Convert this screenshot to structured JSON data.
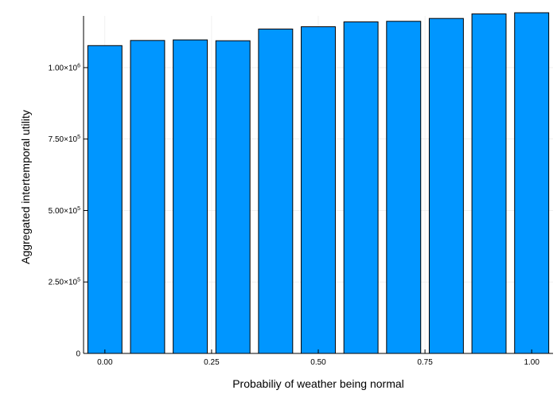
{
  "chart_data": {
    "type": "bar",
    "x": [
      0.0,
      0.1,
      0.2,
      0.3,
      0.4,
      0.5,
      0.6,
      0.7,
      0.8,
      0.9,
      1.0
    ],
    "values": [
      1077000,
      1095000,
      1097000,
      1094000,
      1135000,
      1143000,
      1160000,
      1162000,
      1172000,
      1188000,
      1192000
    ],
    "xlabel": "Probabiliy of weather being normal",
    "ylabel": "Aggregated intertemporal utility",
    "xlim": [
      -0.05,
      1.05
    ],
    "ylim": [
      0,
      1192000
    ],
    "x_ticks": [
      {
        "value": 0.0,
        "label": "0.00"
      },
      {
        "value": 0.25,
        "label": "0.25"
      },
      {
        "value": 0.5,
        "label": "0.50"
      },
      {
        "value": 0.75,
        "label": "0.75"
      },
      {
        "value": 1.0,
        "label": "1.00"
      }
    ],
    "y_ticks": [
      {
        "value": 0,
        "label": "0",
        "mantissa": "",
        "exponent": ""
      },
      {
        "value": 250000,
        "label": "2.50×10⁵",
        "mantissa": "2.50×10",
        "exponent": "5"
      },
      {
        "value": 500000,
        "label": "5.00×10⁵",
        "mantissa": "5.00×10",
        "exponent": "5"
      },
      {
        "value": 750000,
        "label": "7.50×10⁵",
        "mantissa": "7.50×10",
        "exponent": "5"
      },
      {
        "value": 1000000,
        "label": "1.00×10⁶",
        "mantissa": "1.00×10",
        "exponent": "6"
      }
    ],
    "bar_color": "#0096ff",
    "bar_edge_color": "#000000",
    "grid": true,
    "legend": false
  }
}
